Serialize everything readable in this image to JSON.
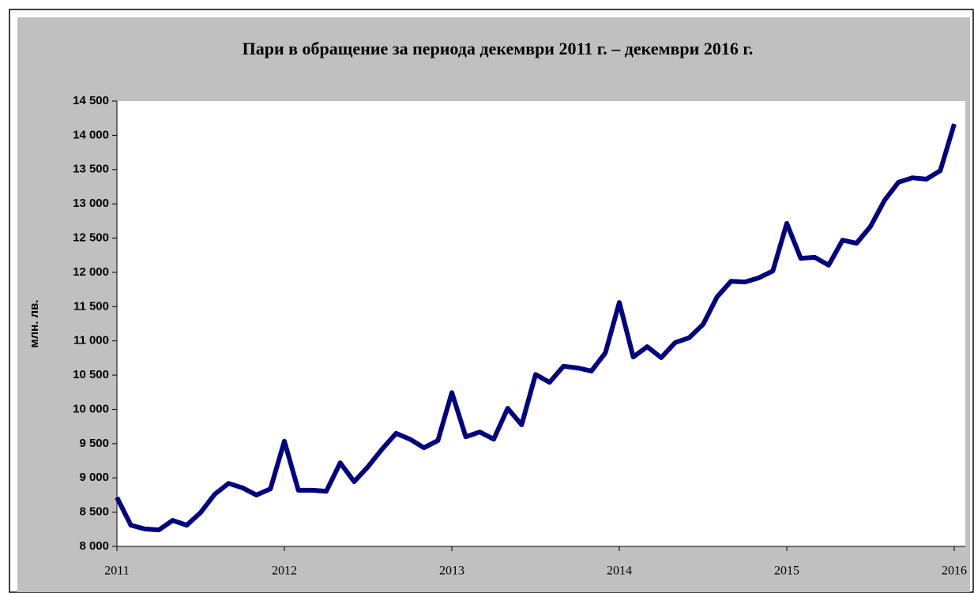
{
  "chart_data": {
    "type": "line",
    "title": "Пари в обращение за периода декември 2011 г. – декември 2016 г.",
    "y_label": "млн. лв.",
    "categories": [
      "2011",
      null,
      null,
      null,
      null,
      null,
      null,
      null,
      null,
      null,
      null,
      null,
      "2012",
      null,
      null,
      null,
      null,
      null,
      null,
      null,
      null,
      null,
      null,
      null,
      "2013",
      null,
      null,
      null,
      null,
      null,
      null,
      null,
      null,
      null,
      null,
      null,
      "2014",
      null,
      null,
      null,
      null,
      null,
      null,
      null,
      null,
      null,
      null,
      null,
      "2015",
      null,
      null,
      null,
      null,
      null,
      null,
      null,
      null,
      null,
      null,
      null,
      "2016"
    ],
    "series": [
      {
        "name": null,
        "color": "#000080",
        "values": [
          8715,
          8310,
          8255,
          8240,
          8380,
          8310,
          8495,
          8760,
          8920,
          8855,
          8750,
          8840,
          9535,
          8820,
          8820,
          8805,
          9220,
          8945,
          9165,
          9420,
          9650,
          9565,
          9440,
          9545,
          10245,
          9600,
          9670,
          9565,
          10015,
          9775,
          10510,
          10395,
          10630,
          10605,
          10560,
          10825,
          11560,
          10765,
          10915,
          10755,
          10975,
          11045,
          11240,
          11640,
          11870,
          11860,
          11920,
          12020,
          12715,
          12205,
          12220,
          12105,
          12470,
          12425,
          12670,
          13050,
          13315,
          13380,
          13360,
          13485,
          14165
        ]
      }
    ],
    "ylim": [
      8000,
      14500
    ],
    "yticks": [
      {
        "value": 8000,
        "label": "8 000"
      },
      {
        "value": 8500,
        "label": "8 500"
      },
      {
        "value": 9000,
        "label": "9 000"
      },
      {
        "value": 9500,
        "label": "9 500"
      },
      {
        "value": 10000,
        "label": "10 000"
      },
      {
        "value": 10500,
        "label": "10 500"
      },
      {
        "value": 11000,
        "label": "11 000"
      },
      {
        "value": 11500,
        "label": "11 500"
      },
      {
        "value": 12000,
        "label": "12 000"
      },
      {
        "value": 12500,
        "label": "12 500"
      },
      {
        "value": 13000,
        "label": "13 000"
      },
      {
        "value": 13500,
        "label": "13 500"
      },
      {
        "value": 14000,
        "label": "14 000"
      },
      {
        "value": 14500,
        "label": "14 500"
      }
    ],
    "grid": false
  }
}
